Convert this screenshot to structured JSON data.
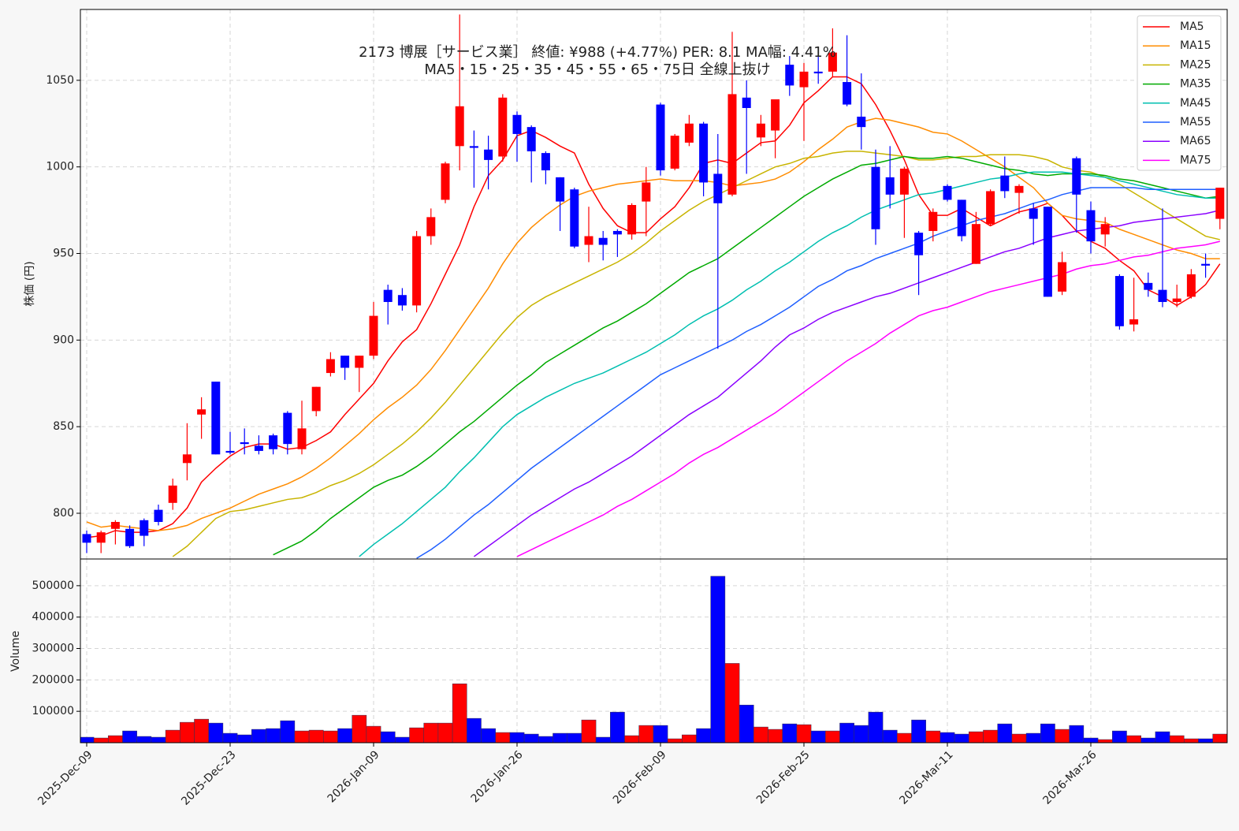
{
  "chart_data": [
    {
      "type": "candlestick",
      "title": [
        "2173  博展［サービス業］ 終値: ¥988 (+4.77%)  PER: 8.1  MA幅: 4.41%",
        "MA5・15・25・35・45・55・65・75日 全線上抜け"
      ],
      "ylabel": "株価 (円)",
      "categories": [
        "2025-Dec-09",
        null,
        null,
        null,
        null,
        null,
        null,
        null,
        null,
        null,
        "2025-Dec-23",
        null,
        null,
        null,
        null,
        null,
        null,
        null,
        null,
        null,
        "2026-Jan-09",
        null,
        null,
        null,
        null,
        null,
        null,
        null,
        null,
        null,
        "2026-Jan-26",
        null,
        null,
        null,
        null,
        null,
        null,
        null,
        null,
        null,
        "2026-Feb-09",
        null,
        null,
        null,
        null,
        null,
        null,
        null,
        null,
        null,
        "2026-Feb-25",
        null,
        null,
        null,
        null,
        null,
        null,
        null,
        null,
        null,
        "2026-Mar-11",
        null,
        null,
        null,
        null,
        null,
        null,
        null,
        null,
        null,
        "2026-Mar-26",
        null,
        null,
        null,
        null,
        null,
        null,
        null,
        null,
        null
      ],
      "open": [
        788,
        783,
        791,
        791,
        796,
        802,
        806,
        829,
        857,
        876,
        836,
        841,
        839,
        845,
        858,
        837,
        859,
        881,
        891,
        884,
        891,
        929,
        926,
        920,
        960,
        981,
        1012,
        1012,
        1010,
        1006,
        1030,
        1023,
        1008,
        994,
        987,
        955,
        959,
        963,
        961,
        980,
        1036,
        999,
        1014,
        1025,
        996,
        984,
        1040,
        1017,
        1021,
        1059,
        1046,
        1055,
        1055,
        1049,
        1029,
        1000,
        994,
        984,
        962,
        963,
        989,
        981,
        944,
        967,
        995,
        985,
        976,
        977,
        928,
        1005,
        975,
        961,
        937,
        909,
        933,
        929,
        922,
        925,
        944,
        970
      ],
      "high": [
        790,
        790,
        796,
        793,
        797,
        805,
        820,
        852,
        867,
        876,
        847,
        849,
        845,
        846,
        859,
        865,
        873,
        893,
        891,
        891,
        922,
        932,
        930,
        963,
        976,
        1003,
        1088,
        1021,
        1018,
        1042,
        1032,
        1024,
        1009,
        994,
        988,
        977,
        963,
        964,
        979,
        1000,
        1037,
        1019,
        1030,
        1026,
        1019,
        1078,
        1050,
        1030,
        1039,
        1064,
        1060,
        1066,
        1080,
        1076,
        1054,
        1010,
        1012,
        1000,
        963,
        976,
        990,
        981,
        974,
        987,
        1006,
        990,
        979,
        977,
        951,
        1006,
        980,
        971,
        938,
        936,
        939,
        976,
        932,
        941,
        950,
        988
      ],
      "low": [
        777,
        777,
        782,
        780,
        781,
        793,
        802,
        819,
        843,
        834,
        834,
        834,
        834,
        834,
        834,
        834,
        856,
        879,
        877,
        870,
        889,
        909,
        917,
        916,
        955,
        979,
        998,
        988,
        987,
        1003,
        1003,
        991,
        990,
        963,
        953,
        945,
        946,
        948,
        958,
        960,
        995,
        998,
        1012,
        983,
        895,
        983,
        996,
        1012,
        1005,
        1041,
        1015,
        1048,
        1052,
        1035,
        1010,
        955,
        976,
        959,
        926,
        957,
        980,
        957,
        944,
        966,
        982,
        973,
        955,
        925,
        926,
        962,
        950,
        954,
        906,
        905,
        925,
        919,
        919,
        924,
        936,
        964
      ],
      "close": [
        783,
        789,
        795,
        781,
        787,
        795,
        816,
        834,
        860,
        834,
        835,
        840,
        836,
        837,
        840,
        849,
        873,
        889,
        884,
        891,
        914,
        922,
        920,
        960,
        971,
        1002,
        1035,
        1011,
        1004,
        1040,
        1019,
        1009,
        998,
        980,
        954,
        960,
        955,
        961,
        978,
        991,
        998,
        1018,
        1025,
        991,
        979,
        1042,
        1034,
        1025,
        1039,
        1047,
        1055,
        1054,
        1066,
        1036,
        1023,
        964,
        984,
        999,
        949,
        974,
        981,
        960,
        967,
        986,
        986,
        989,
        970,
        925,
        945,
        984,
        957,
        967,
        908,
        912,
        929,
        922,
        924,
        938,
        943,
        988
      ],
      "up_color": "#ff0000",
      "down_color": "#0000ff",
      "series": [
        {
          "name": "MA5",
          "color": "#ff0000",
          "values": [
            786,
            787,
            790,
            789,
            789,
            790,
            794,
            803,
            818,
            826,
            833,
            838,
            840,
            840,
            837,
            838,
            842,
            847,
            857,
            866,
            875,
            888,
            899,
            906,
            921,
            938,
            955,
            977,
            995,
            1004,
            1018,
            1021,
            1017,
            1012,
            1008,
            990,
            976,
            966,
            962,
            962,
            970,
            977,
            988,
            1002,
            1004,
            1002,
            1008,
            1014,
            1015,
            1024,
            1037,
            1044,
            1052,
            1052,
            1048,
            1036,
            1021,
            1004,
            984,
            972,
            972,
            976,
            971,
            966,
            970,
            974,
            976,
            979,
            972,
            963,
            957,
            953,
            946,
            940,
            929,
            925,
            920,
            925,
            932,
            944
          ]
        },
        {
          "name": "MA15",
          "color": "#ff8c00",
          "values": [
            795,
            792,
            793,
            792,
            791,
            790,
            791,
            793,
            797,
            800,
            803,
            807,
            811,
            814,
            817,
            821,
            826,
            832,
            839,
            846,
            854,
            861,
            867,
            874,
            883,
            894,
            906,
            918,
            930,
            944,
            956,
            965,
            972,
            978,
            983,
            986,
            988,
            990,
            991,
            992,
            993,
            992,
            992,
            992,
            991,
            989,
            990,
            991,
            993,
            997,
            1003,
            1010,
            1016,
            1023,
            1026,
            1028,
            1027,
            1025,
            1023,
            1020,
            1019,
            1015,
            1010,
            1005,
            1000,
            994,
            988,
            979,
            972,
            970,
            969,
            968,
            964,
            961,
            958,
            955,
            952,
            950,
            947,
            947
          ]
        },
        {
          "name": "MA25",
          "color": "#c8b400",
          "values": [
            null,
            null,
            null,
            null,
            null,
            null,
            775,
            781,
            789,
            797,
            801,
            802,
            804,
            806,
            808,
            809,
            812,
            816,
            819,
            823,
            828,
            834,
            840,
            847,
            855,
            864,
            874,
            884,
            894,
            904,
            913,
            920,
            925,
            929,
            933,
            937,
            941,
            945,
            950,
            956,
            963,
            969,
            975,
            980,
            984,
            988,
            992,
            996,
            1000,
            1002,
            1005,
            1006,
            1008,
            1009,
            1009,
            1008,
            1007,
            1006,
            1004,
            1004,
            1005,
            1006,
            1006,
            1007,
            1007,
            1007,
            1006,
            1004,
            1000,
            998,
            997,
            994,
            990,
            985,
            980,
            975,
            970,
            965,
            960,
            958
          ]
        },
        {
          "name": "MA35",
          "color": "#00aa00",
          "values": [
            null,
            null,
            null,
            null,
            null,
            null,
            null,
            null,
            null,
            null,
            null,
            null,
            null,
            776,
            780,
            784,
            790,
            797,
            803,
            809,
            815,
            819,
            822,
            827,
            833,
            840,
            847,
            853,
            860,
            867,
            874,
            880,
            887,
            892,
            897,
            902,
            907,
            911,
            916,
            921,
            927,
            933,
            939,
            943,
            947,
            953,
            959,
            965,
            971,
            977,
            983,
            988,
            993,
            997,
            1001,
            1002,
            1004,
            1006,
            1005,
            1005,
            1006,
            1005,
            1003,
            1001,
            999,
            998,
            996,
            995,
            996,
            996,
            996,
            995,
            993,
            992,
            990,
            988,
            986,
            984,
            982,
            983
          ]
        },
        {
          "name": "MA45",
          "color": "#00bfb0",
          "values": [
            null,
            null,
            null,
            null,
            null,
            null,
            null,
            null,
            null,
            null,
            null,
            null,
            null,
            null,
            null,
            null,
            null,
            null,
            null,
            775,
            782,
            788,
            794,
            801,
            808,
            815,
            824,
            832,
            841,
            850,
            857,
            862,
            867,
            871,
            875,
            878,
            881,
            885,
            889,
            893,
            898,
            903,
            909,
            914,
            918,
            923,
            929,
            934,
            940,
            945,
            951,
            957,
            962,
            966,
            971,
            975,
            978,
            981,
            984,
            985,
            987,
            989,
            991,
            993,
            994,
            996,
            997,
            997,
            997,
            996,
            995,
            994,
            992,
            990,
            988,
            986,
            984,
            983,
            982,
            982
          ]
        },
        {
          "name": "MA55",
          "color": "#1f5fff",
          "values": [
            null,
            null,
            null,
            null,
            null,
            null,
            null,
            null,
            null,
            null,
            null,
            null,
            null,
            null,
            null,
            null,
            null,
            null,
            null,
            null,
            null,
            null,
            null,
            774,
            779,
            785,
            792,
            799,
            805,
            812,
            819,
            826,
            832,
            838,
            844,
            850,
            856,
            862,
            868,
            874,
            880,
            884,
            888,
            892,
            896,
            900,
            905,
            909,
            914,
            919,
            925,
            931,
            935,
            940,
            943,
            947,
            950,
            953,
            956,
            960,
            963,
            966,
            969,
            971,
            973,
            976,
            979,
            981,
            984,
            986,
            988,
            988,
            988,
            988,
            987,
            987,
            987,
            987,
            987,
            987
          ]
        },
        {
          "name": "MA65",
          "color": "#8a00ff",
          "values": [
            null,
            null,
            null,
            null,
            null,
            null,
            null,
            null,
            null,
            null,
            null,
            null,
            null,
            null,
            null,
            null,
            null,
            null,
            null,
            null,
            null,
            null,
            null,
            null,
            null,
            null,
            null,
            775,
            781,
            787,
            793,
            799,
            804,
            809,
            814,
            818,
            823,
            828,
            833,
            839,
            845,
            851,
            857,
            862,
            867,
            874,
            881,
            888,
            896,
            903,
            907,
            912,
            916,
            919,
            922,
            925,
            927,
            930,
            933,
            936,
            939,
            942,
            945,
            948,
            951,
            953,
            956,
            959,
            961,
            963,
            964,
            965,
            966,
            968,
            969,
            970,
            971,
            972,
            973,
            975
          ]
        },
        {
          "name": "MA75",
          "color": "#ff00ff",
          "values": [
            null,
            null,
            null,
            null,
            null,
            null,
            null,
            null,
            null,
            null,
            null,
            null,
            null,
            null,
            null,
            null,
            null,
            null,
            null,
            null,
            null,
            null,
            null,
            null,
            null,
            null,
            null,
            null,
            null,
            null,
            775,
            779,
            783,
            787,
            791,
            795,
            799,
            804,
            808,
            813,
            818,
            823,
            829,
            834,
            838,
            843,
            848,
            853,
            858,
            864,
            870,
            876,
            882,
            888,
            893,
            898,
            904,
            909,
            914,
            917,
            919,
            922,
            925,
            928,
            930,
            932,
            934,
            936,
            938,
            941,
            943,
            944,
            946,
            948,
            949,
            951,
            953,
            954,
            955,
            957
          ]
        }
      ],
      "ylim": [
        773.6,
        1090.9
      ],
      "yticks": [
        800,
        850,
        900,
        950,
        1000,
        1050
      ],
      "grid": true,
      "legend": "upper right"
    },
    {
      "type": "bar",
      "ylabel": "Volume",
      "values": [
        17500,
        15000,
        22500,
        37500,
        20000,
        17500,
        40000,
        65000,
        75000,
        62500,
        30000,
        25000,
        42500,
        45000,
        70000,
        37500,
        40000,
        37500,
        45000,
        87500,
        52500,
        35000,
        17500,
        47500,
        62500,
        62500,
        187500,
        77500,
        45000,
        32500,
        32500,
        27500,
        20000,
        30000,
        30000,
        72500,
        17500,
        97500,
        22500,
        55000,
        55000,
        12500,
        25000,
        45000,
        530000,
        252500,
        120000,
        50000,
        42500,
        60000,
        57500,
        37500,
        37500,
        62500,
        55000,
        97500,
        40000,
        30000,
        72500,
        37500,
        32500,
        27500,
        35000,
        40000,
        60000,
        27500,
        30000,
        60000,
        42500,
        55000,
        15000,
        10000,
        37500,
        22500,
        15000,
        35000,
        22500,
        12500,
        12500,
        27500
      ],
      "ylim": [
        0,
        585000
      ],
      "yticks": [
        100000,
        200000,
        300000,
        400000,
        500000
      ],
      "grid": true
    }
  ]
}
